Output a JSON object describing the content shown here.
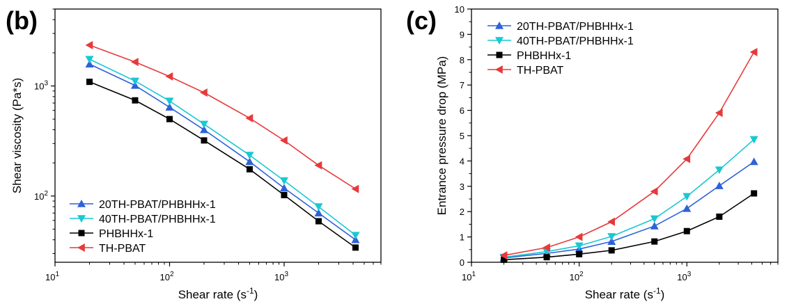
{
  "chart_data": [
    {
      "panel_label": "(b)",
      "type": "line",
      "xlabel": "Shear rate (s",
      "xlabel_sup": "-1",
      "xlabel_end": ")",
      "ylabel": "Shear viscosity (Pa*s)",
      "xscale": "log",
      "yscale": "log",
      "xlim": [
        10,
        7000
      ],
      "ylim": [
        25,
        5000
      ],
      "x_ticks": [
        {
          "base": "10",
          "exp": "1",
          "value": 10
        },
        {
          "base": "10",
          "exp": "2",
          "value": 100
        },
        {
          "base": "10",
          "exp": "3",
          "value": 1000
        }
      ],
      "y_ticks": [
        {
          "base": "10",
          "exp": "2",
          "value": 100
        },
        {
          "base": "10",
          "exp": "3",
          "value": 1000
        }
      ],
      "legend_position": "bottom-left",
      "x": [
        20,
        50,
        100,
        200,
        500,
        1000,
        2000,
        4200
      ],
      "series": [
        {
          "name": "20TH-PBAT/PHBHHx-1",
          "color": "#2E62D9",
          "marker": "triangle-up",
          "values": [
            1580,
            1010,
            640,
            400,
            205,
            118,
            70,
            40
          ]
        },
        {
          "name": "40TH-PBAT/PHBHHx-1",
          "color": "#19C8D2",
          "marker": "triangle-down",
          "values": [
            1750,
            1110,
            730,
            450,
            235,
            138,
            80,
            44
          ]
        },
        {
          "name": "PHBHHx-1",
          "color": "#000000",
          "marker": "square",
          "values": [
            1090,
            740,
            500,
            320,
            175,
            102,
            59,
            34
          ]
        },
        {
          "name": "TH-PBAT",
          "color": "#E8393A",
          "marker": "triangle-left",
          "values": [
            2350,
            1650,
            1220,
            870,
            510,
            320,
            190,
            116
          ]
        }
      ]
    },
    {
      "panel_label": "(c)",
      "type": "line",
      "xlabel": "Shear rate (s",
      "xlabel_sup": "-1",
      "xlabel_end": ")",
      "ylabel": "Entrance pressure drop (MPa)",
      "xscale": "log",
      "yscale": "linear",
      "xlim": [
        10,
        7000
      ],
      "ylim": [
        0,
        10
      ],
      "x_ticks": [
        {
          "base": "10",
          "exp": "1",
          "value": 10
        },
        {
          "base": "10",
          "exp": "2",
          "value": 100
        },
        {
          "base": "10",
          "exp": "3",
          "value": 1000
        }
      ],
      "y_ticks": [
        "0",
        "1",
        "2",
        "3",
        "4",
        "5",
        "6",
        "7",
        "8",
        "9",
        "10"
      ],
      "legend_position": "top-left",
      "x": [
        20,
        50,
        100,
        200,
        500,
        1000,
        2000,
        4200
      ],
      "series": [
        {
          "name": "20TH-PBAT/PHBHHx-1",
          "color": "#2E62D9",
          "marker": "triangle-up",
          "values": [
            0.17,
            0.35,
            0.52,
            0.82,
            1.43,
            2.12,
            3.02,
            3.97
          ]
        },
        {
          "name": "40TH-PBAT/PHBHHx-1",
          "color": "#19C8D2",
          "marker": "triangle-down",
          "values": [
            0.2,
            0.42,
            0.65,
            1.02,
            1.72,
            2.6,
            3.65,
            4.85
          ]
        },
        {
          "name": "PHBHHx-1",
          "color": "#000000",
          "marker": "square",
          "values": [
            0.1,
            0.2,
            0.32,
            0.47,
            0.82,
            1.23,
            1.8,
            2.72
          ]
        },
        {
          "name": "TH-PBAT",
          "color": "#E8393A",
          "marker": "triangle-left",
          "values": [
            0.27,
            0.58,
            1.0,
            1.6,
            2.8,
            4.08,
            5.9,
            8.3
          ]
        }
      ]
    }
  ]
}
